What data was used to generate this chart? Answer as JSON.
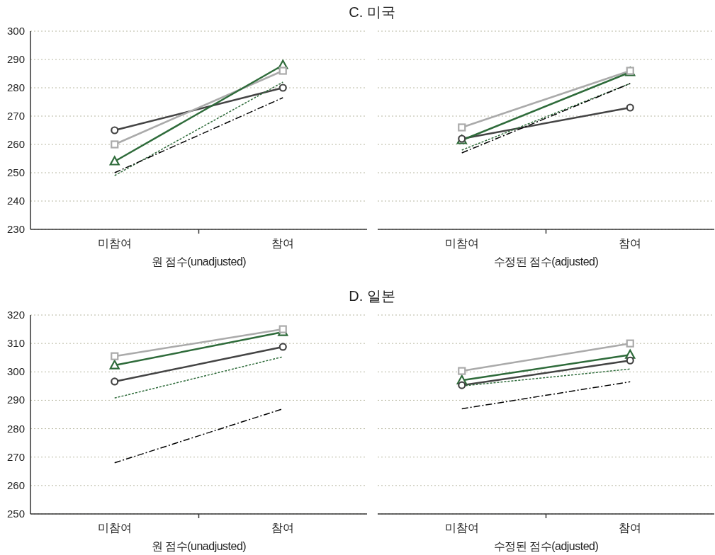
{
  "chart_data": [
    {
      "type": "line",
      "title": "C. 미국",
      "xlabel": "원 점수(unadjusted)",
      "categories": [
        "미참여",
        "참여"
      ],
      "ylim": [
        230,
        300
      ],
      "yticks": [
        230,
        240,
        250,
        260,
        270,
        280,
        290,
        300
      ],
      "grid": "y",
      "series": [
        {
          "color": "#444444",
          "values": [
            265,
            280
          ],
          "marker": "circle",
          "line_style": "solid"
        },
        {
          "color": "#aaaaaa",
          "values": [
            260,
            286
          ],
          "marker": "square",
          "line_style": "solid"
        },
        {
          "color": "#2e6b3a",
          "values": [
            254,
            288
          ],
          "marker": "triangle",
          "line_style": "solid"
        },
        {
          "color": "#2e6b3a",
          "values": [
            249,
            282
          ],
          "marker": "none",
          "line_style": "dotted"
        },
        {
          "color": "#000000",
          "values": [
            250,
            276.5
          ],
          "marker": "none",
          "line_style": "dashdot"
        }
      ]
    },
    {
      "type": "line",
      "xlabel": "수정된 점수(adjusted)",
      "categories": [
        "미참여",
        "참여"
      ],
      "ylim": [
        230,
        300
      ],
      "yticks": [
        230,
        240,
        250,
        260,
        270,
        280,
        290,
        300
      ],
      "grid": "y",
      "tick_labels": "x",
      "series": [
        {
          "color": "#444444",
          "values": [
            262,
            273
          ],
          "marker": "circle",
          "line_style": "solid"
        },
        {
          "color": "#aaaaaa",
          "values": [
            266,
            286
          ],
          "marker": "square",
          "line_style": "solid"
        },
        {
          "color": "#2e6b3a",
          "values": [
            261.5,
            285.5
          ],
          "marker": "triangle",
          "line_style": "solid"
        },
        {
          "color": "#2e6b3a",
          "values": [
            258,
            281.5
          ],
          "marker": "none",
          "line_style": "dotted"
        },
        {
          "color": "#000000",
          "values": [
            257,
            281.5
          ],
          "marker": "none",
          "line_style": "dashdot"
        }
      ]
    },
    {
      "type": "line",
      "title": "D. 일본",
      "xlabel": "원 점수(unadjusted)",
      "categories": [
        "미참여",
        "참여"
      ],
      "ylim": [
        250,
        320
      ],
      "yticks": [
        250,
        260,
        270,
        280,
        290,
        300,
        310,
        320
      ],
      "grid": "y",
      "series": [
        {
          "color": "#444444",
          "values": [
            296.6,
            308.8
          ],
          "marker": "circle",
          "line_style": "solid"
        },
        {
          "color": "#aaaaaa",
          "values": [
            305.5,
            315
          ],
          "marker": "square",
          "line_style": "solid"
        },
        {
          "color": "#2e6b3a",
          "values": [
            302.3,
            314
          ],
          "marker": "triangle",
          "line_style": "solid"
        },
        {
          "color": "#2e6b3a",
          "values": [
            290.8,
            305.3
          ],
          "marker": "none",
          "line_style": "dotted"
        },
        {
          "color": "#000000",
          "values": [
            268,
            287
          ],
          "marker": "none",
          "line_style": "dashdot"
        }
      ]
    },
    {
      "type": "line",
      "xlabel": "수정된 점수(adjusted)",
      "categories": [
        "미참여",
        "참여"
      ],
      "ylim": [
        250,
        320
      ],
      "yticks": [
        250,
        260,
        270,
        280,
        290,
        300,
        310,
        320
      ],
      "grid": "y",
      "tick_labels": "x",
      "series": [
        {
          "color": "#444444",
          "values": [
            295.3,
            304
          ],
          "marker": "circle",
          "line_style": "solid"
        },
        {
          "color": "#aaaaaa",
          "values": [
            300.3,
            310
          ],
          "marker": "square",
          "line_style": "solid"
        },
        {
          "color": "#2e6b3a",
          "values": [
            297,
            306
          ],
          "marker": "triangle",
          "line_style": "solid"
        },
        {
          "color": "#2e6b3a",
          "values": [
            295,
            301
          ],
          "marker": "none",
          "line_style": "dotted"
        },
        {
          "color": "#000000",
          "values": [
            287,
            296.5
          ],
          "marker": "none",
          "line_style": "dashdot"
        }
      ]
    }
  ]
}
